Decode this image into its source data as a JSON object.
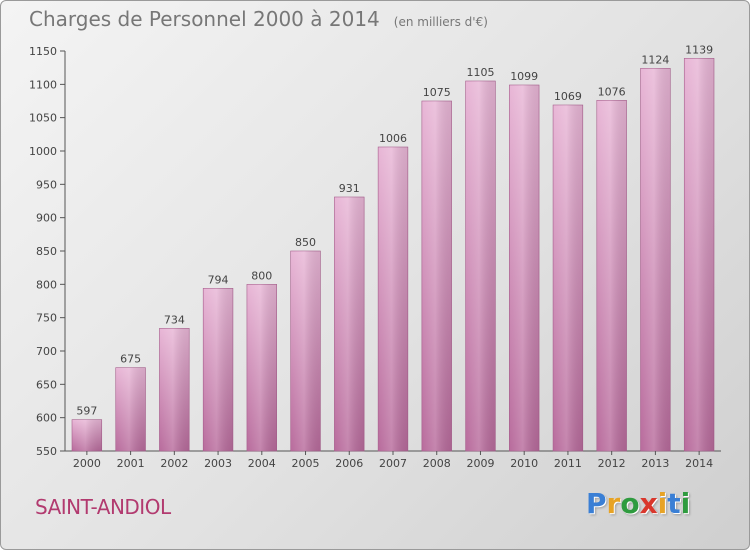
{
  "title": "Charges de Personnel 2000 à 2014",
  "unit": "(en milliers d'€)",
  "place": "SAINT-ANDIOL",
  "logo": {
    "letters": [
      "P",
      "r",
      "o",
      "x",
      "i",
      "t",
      "i"
    ],
    "colors": [
      "#3a7fd5",
      "#e7a325",
      "#2f9b3f",
      "#d9372c",
      "#e7a325",
      "#3a7fd5",
      "#2f9b3f"
    ]
  },
  "colors": {
    "bar_top": "#e8b6d6",
    "bar_bottom": "#b86b9c",
    "title": "#777777",
    "place": "#b23a6f"
  },
  "chart_data": {
    "type": "bar",
    "title": "Charges de Personnel 2000 à 2014",
    "subtitle": "(en milliers d'€)",
    "categories": [
      "2000",
      "2001",
      "2002",
      "2003",
      "2004",
      "2005",
      "2006",
      "2007",
      "2008",
      "2009",
      "2010",
      "2011",
      "2012",
      "2013",
      "2014"
    ],
    "values": [
      597,
      675,
      734,
      794,
      800,
      850,
      931,
      1006,
      1075,
      1105,
      1099,
      1069,
      1076,
      1124,
      1139
    ],
    "data_labels": [
      "597",
      "675",
      "734",
      "794",
      "800",
      "850",
      "931",
      "1006",
      "1075",
      "1105",
      "1099",
      "1069",
      "1076",
      "1124",
      "1139"
    ],
    "ylim": [
      550,
      1150
    ],
    "yticks": [
      550,
      600,
      650,
      700,
      750,
      800,
      850,
      900,
      950,
      1000,
      1050,
      1100,
      1150
    ],
    "ytick_labels": [
      "550",
      "600",
      "650",
      "700",
      "750",
      "800",
      "850",
      "900",
      "950",
      "1000",
      "1050",
      "1100",
      "1150"
    ],
    "grid": false,
    "legend": "none"
  }
}
